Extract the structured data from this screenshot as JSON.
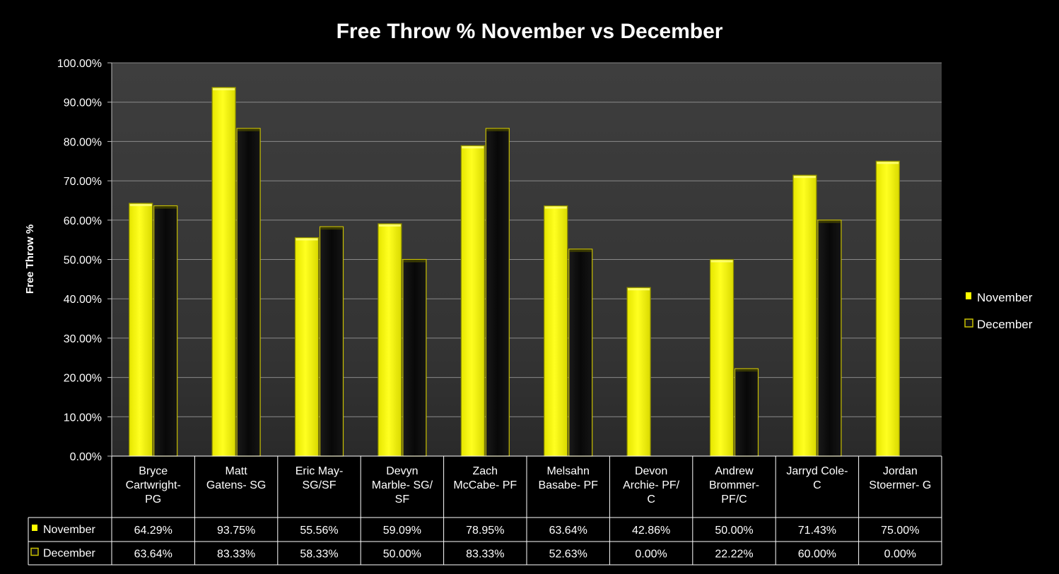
{
  "chart_data": {
    "type": "bar",
    "title": "Free Throw % November vs December",
    "ylabel": "Free Throw %",
    "xlabel": "",
    "ylim": [
      0,
      100
    ],
    "ytick_step": 10,
    "yticks": [
      "0.00%",
      "10.00%",
      "20.00%",
      "30.00%",
      "40.00%",
      "50.00%",
      "60.00%",
      "70.00%",
      "80.00%",
      "90.00%",
      "100.00%"
    ],
    "grid": true,
    "legend_position": "right",
    "categories": [
      [
        "Bryce",
        "Cartwright-",
        "PG"
      ],
      [
        "Matt",
        "Gatens- SG"
      ],
      [
        "Eric May-",
        "SG/SF"
      ],
      [
        "Devyn",
        "Marble- SG/",
        "SF"
      ],
      [
        "Zach",
        "McCabe- PF"
      ],
      [
        "Melsahn",
        "Basabe- PF"
      ],
      [
        "Devon",
        "Archie- PF/",
        "C"
      ],
      [
        "Andrew",
        "Brommer-",
        "PF/C"
      ],
      [
        "Jarryd Cole-",
        "C"
      ],
      [
        "Jordan",
        "Stoermer- G"
      ]
    ],
    "series": [
      {
        "name": "November",
        "color": "#ffff00",
        "values": [
          64.29,
          93.75,
          55.56,
          59.09,
          78.95,
          63.64,
          42.86,
          50.0,
          71.43,
          75.0
        ],
        "labels": [
          "64.29%",
          "93.75%",
          "55.56%",
          "59.09%",
          "78.95%",
          "63.64%",
          "42.86%",
          "50.00%",
          "71.43%",
          "75.00%"
        ]
      },
      {
        "name": "December",
        "color": "#0a0a0a",
        "values": [
          63.64,
          83.33,
          58.33,
          50.0,
          83.33,
          52.63,
          0.0,
          22.22,
          60.0,
          0.0
        ],
        "labels": [
          "63.64%",
          "83.33%",
          "58.33%",
          "50.00%",
          "83.33%",
          "52.63%",
          "0.00%",
          "22.22%",
          "60.00%",
          "0.00%"
        ]
      }
    ]
  },
  "colors": {
    "background": "#000000",
    "plot_area": "#3a3a3a",
    "gridline": "#8a8a8a",
    "november": "#ffff00",
    "december": "#0a0a0a",
    "december_border": "#c8c000"
  }
}
